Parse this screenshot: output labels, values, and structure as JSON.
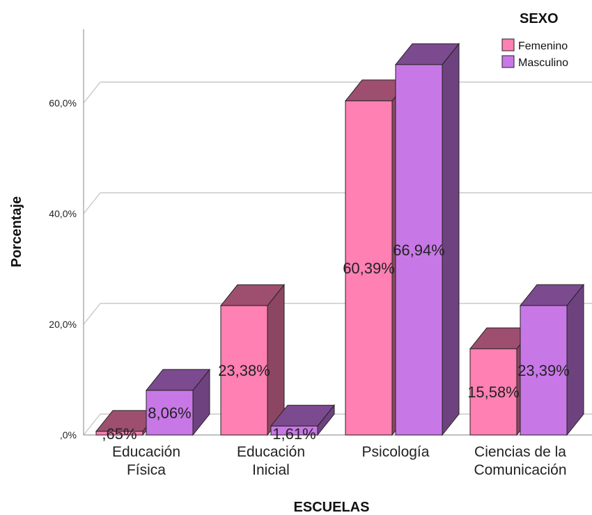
{
  "chart_data": {
    "type": "bar",
    "xlabel": "ESCUELAS",
    "ylabel": "Porcentaje",
    "ylim": [
      0,
      70
    ],
    "yticks": [
      ",0%",
      "20,0%",
      "40,0%",
      "60,0%"
    ],
    "grid": true,
    "legend_position": "top-right",
    "legend_title": "SEXO",
    "categories": [
      [
        "Educación",
        "Física"
      ],
      [
        "Educación",
        "Inicial"
      ],
      [
        "Psicología"
      ],
      [
        "Ciencias de la",
        "Comunicación"
      ]
    ],
    "series": [
      {
        "name": "Femenino",
        "color": "#ff80b3",
        "values": [
          0.65,
          23.38,
          60.39,
          15.58
        ],
        "labels": [
          ",65%",
          "23,38%",
          "60,39%",
          "15,58%"
        ]
      },
      {
        "name": "Masculino",
        "color": "#c878e6",
        "values": [
          8.06,
          1.61,
          66.94,
          23.39
        ],
        "labels": [
          "8,06%",
          "1,61%",
          "66,94%",
          "23,39%"
        ]
      }
    ]
  }
}
